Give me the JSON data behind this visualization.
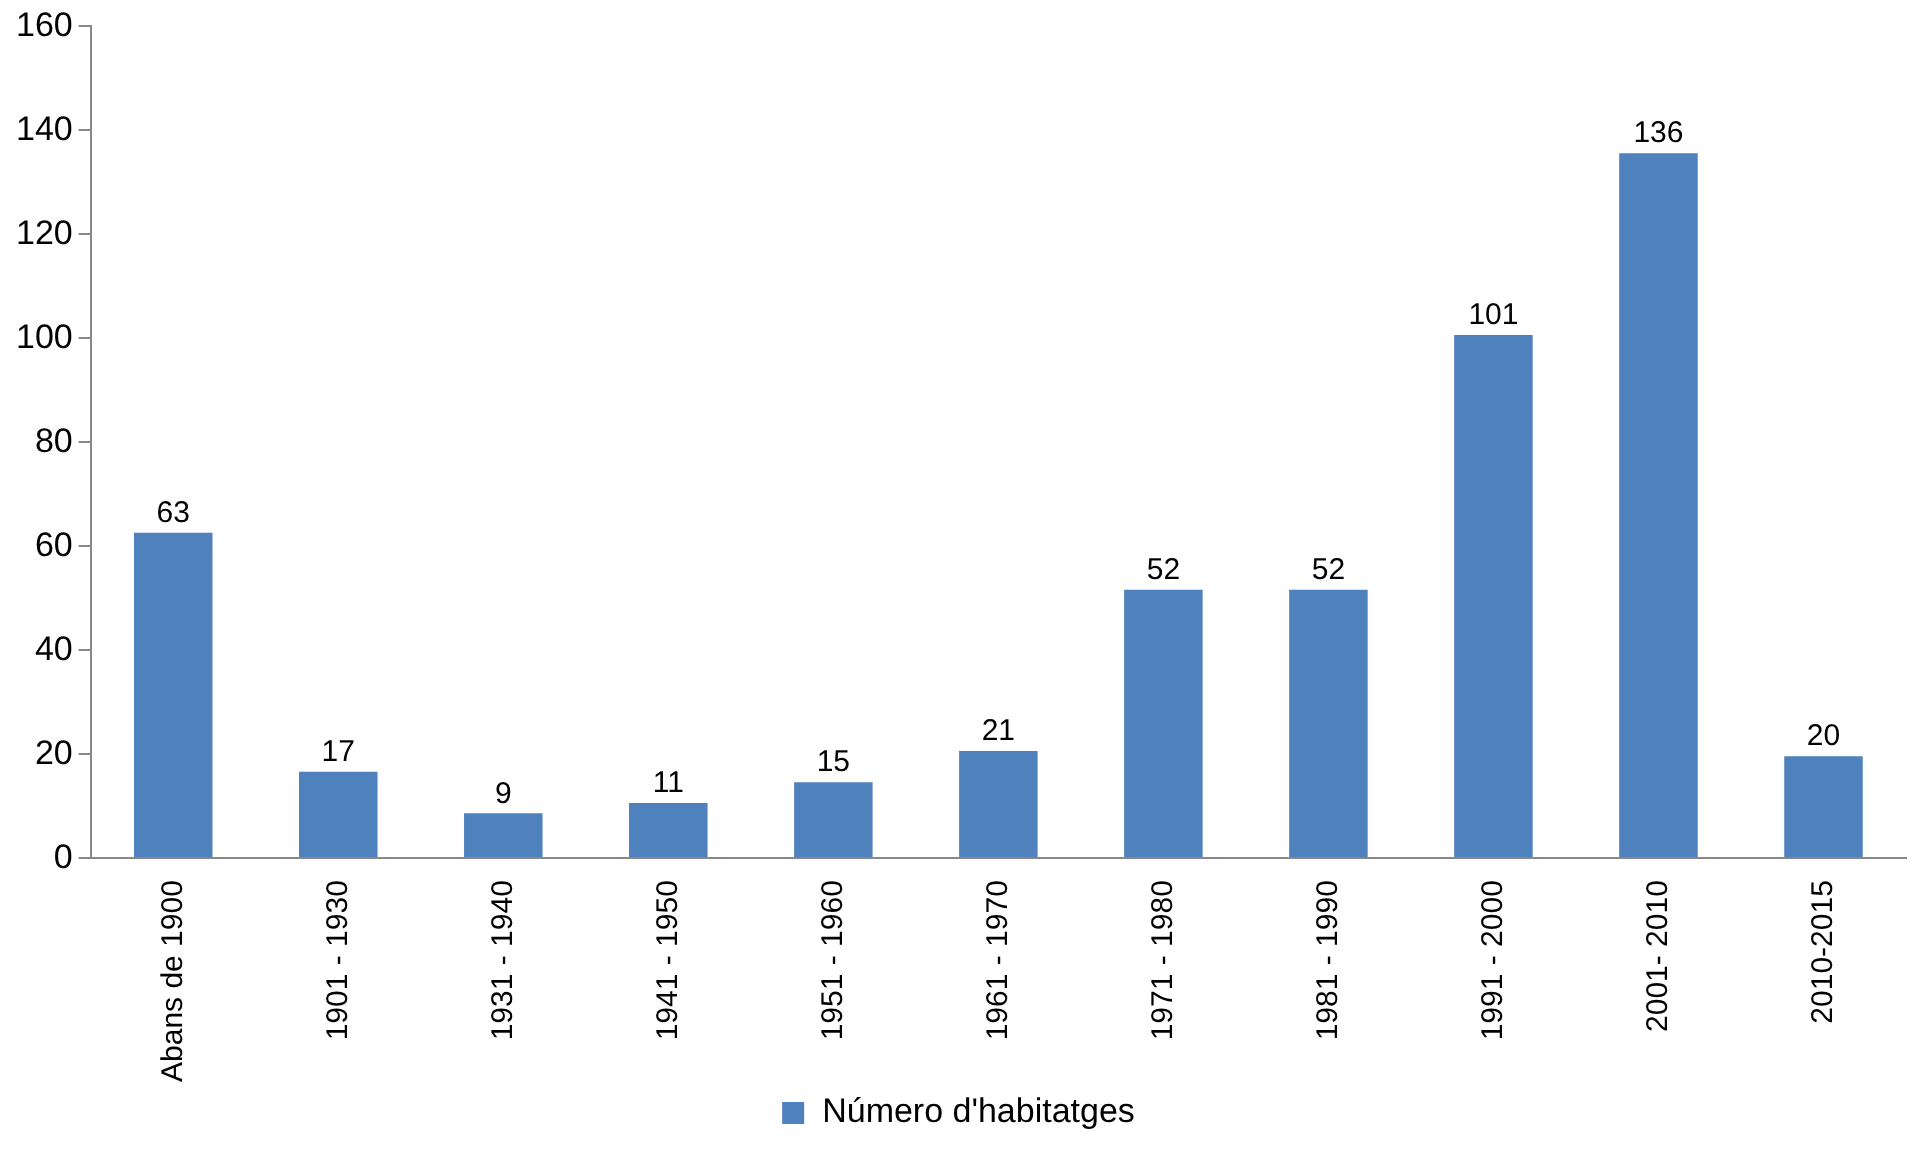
{
  "chart_data": {
    "type": "bar",
    "categories": [
      "Abans de 1900",
      "1901 - 1930",
      "1931 - 1940",
      "1941 - 1950",
      "1951 - 1960",
      "1961 - 1970",
      "1971 - 1980",
      "1981 - 1990",
      "1991 - 2000",
      "2001- 2010",
      "2010-2015"
    ],
    "series": [
      {
        "name": "Número d'habitatges",
        "color": "#4f81bd",
        "values": [
          63,
          17,
          9,
          11,
          15,
          21,
          52,
          52,
          101,
          136,
          20
        ]
      }
    ],
    "ylim": [
      0,
      160
    ],
    "yticks": [
      0,
      20,
      40,
      60,
      80,
      100,
      120,
      140,
      160
    ],
    "grid": false,
    "legend": "bottom",
    "data_labels": true
  }
}
